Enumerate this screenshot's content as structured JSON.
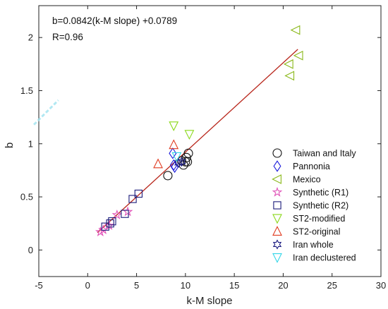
{
  "chart_data": {
    "type": "scatter",
    "xlabel": "k-M slope",
    "ylabel": "b",
    "xlim": [
      -5,
      30
    ],
    "ylim": [
      -0.25,
      2.3
    ],
    "xticks": [
      -5,
      0,
      5,
      10,
      15,
      20,
      25,
      30
    ],
    "yticks": [
      0,
      0.5,
      1,
      1.5,
      2
    ],
    "xtick_labels": [
      "-5",
      "0",
      "5",
      "10",
      "15",
      "20",
      "25",
      "30"
    ],
    "ytick_labels": [
      "0",
      "0.5",
      "1",
      "1.5",
      "2"
    ],
    "grid": false,
    "legend_position": "right",
    "annotations": [
      "b=0.0842(k-M slope) +0.0789",
      "R=0.96"
    ],
    "fit_line": {
      "slope": 0.0842,
      "intercept": 0.0789,
      "x_range": [
        1.0,
        21.5
      ],
      "color": "#b8251a"
    },
    "series": [
      {
        "name": "Taiwan and Italy",
        "marker": "circle",
        "color": "#111111",
        "x": [
          8.2,
          9.6,
          10.1,
          10.3,
          10.2,
          10.0,
          9.8
        ],
        "y": [
          0.7,
          0.84,
          0.87,
          0.91,
          0.83,
          0.83,
          0.8
        ]
      },
      {
        "name": "Pannonia",
        "marker": "diamond",
        "color": "#1a1adb",
        "x": [
          8.7,
          8.9,
          8.8
        ],
        "y": [
          0.91,
          0.78,
          0.8
        ]
      },
      {
        "name": "Mexico",
        "marker": "triangle-left",
        "color": "#8ab81a",
        "x": [
          21.3,
          21.6,
          20.6,
          20.7
        ],
        "y": [
          2.07,
          1.83,
          1.75,
          1.64
        ]
      },
      {
        "name": "Synthetic (R1)",
        "marker": "star",
        "color": "#e052b7",
        "x": [
          1.3,
          1.6,
          2.2,
          3.0,
          4.1
        ],
        "y": [
          0.17,
          0.19,
          0.23,
          0.33,
          0.36
        ]
      },
      {
        "name": "Synthetic (R2)",
        "marker": "square",
        "color": "#1a1a7a",
        "x": [
          1.8,
          2.3,
          2.5,
          3.8,
          4.6,
          5.2
        ],
        "y": [
          0.22,
          0.25,
          0.27,
          0.34,
          0.48,
          0.53
        ]
      },
      {
        "name": "ST2-modified",
        "marker": "triangle-down",
        "color": "#8ad81a",
        "x": [
          10.4,
          8.8
        ],
        "y": [
          1.09,
          1.17
        ]
      },
      {
        "name": "ST2-original",
        "marker": "triangle-up",
        "color": "#e03a1f",
        "x": [
          7.2,
          8.8
        ],
        "y": [
          0.81,
          0.99
        ]
      },
      {
        "name": "Iran whole",
        "marker": "hexagram",
        "color": "#1a1a80",
        "x": [
          9.3,
          9.6
        ],
        "y": [
          0.82,
          0.83
        ]
      },
      {
        "name": "Iran declustered",
        "marker": "triangle-down",
        "color": "#33d6e8",
        "x": [
          9.1
        ],
        "y": [
          0.88
        ]
      }
    ]
  }
}
